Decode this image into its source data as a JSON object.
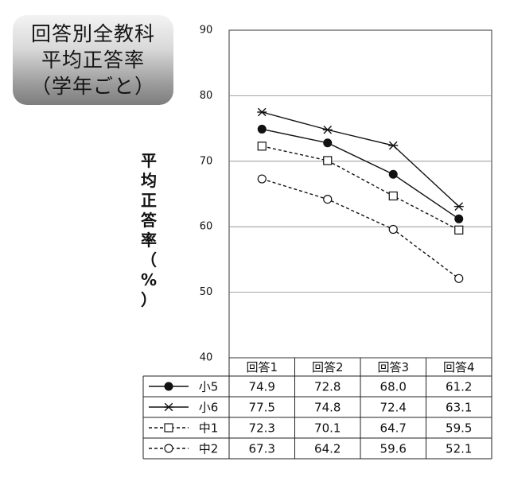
{
  "title_lines": [
    "回答別全教科",
    "平均正答率",
    "（学年ごと）"
  ],
  "ylabel_chars": [
    "平",
    "均",
    "正",
    "答",
    "率",
    "（",
    "%",
    "）"
  ],
  "chart_data": {
    "type": "line",
    "title": "回答別全教科 平均正答率（学年ごと）",
    "ylabel": "平均正答率（%）",
    "xlabel": "",
    "categories": [
      "回答1",
      "回答2",
      "回答3",
      "回答4"
    ],
    "ylim": [
      40,
      90
    ],
    "yticks": [
      40,
      50,
      60,
      70,
      80,
      90
    ],
    "grid": true,
    "legend": "data-table",
    "series": [
      {
        "name": "小5",
        "values": [
          74.9,
          72.8,
          68.0,
          61.2
        ],
        "line": "solid",
        "marker": "filled-circle",
        "color": "#111111"
      },
      {
        "name": "小6",
        "values": [
          77.5,
          74.8,
          72.4,
          63.1
        ],
        "line": "solid",
        "marker": "asterisk",
        "color": "#111111"
      },
      {
        "name": "中1",
        "values": [
          72.3,
          70.1,
          64.7,
          59.5
        ],
        "line": "dashed",
        "marker": "open-square",
        "color": "#111111"
      },
      {
        "name": "中2",
        "values": [
          67.3,
          64.2,
          59.6,
          52.1
        ],
        "line": "dashed",
        "marker": "open-circle",
        "color": "#111111"
      }
    ],
    "table_values": [
      [
        "74.9",
        "72.8",
        "68.0",
        "61.2"
      ],
      [
        "77.5",
        "74.8",
        "72.4",
        "63.1"
      ],
      [
        "72.3",
        "70.1",
        "64.7",
        "59.5"
      ],
      [
        "67.3",
        "64.2",
        "59.6",
        "52.1"
      ]
    ]
  }
}
